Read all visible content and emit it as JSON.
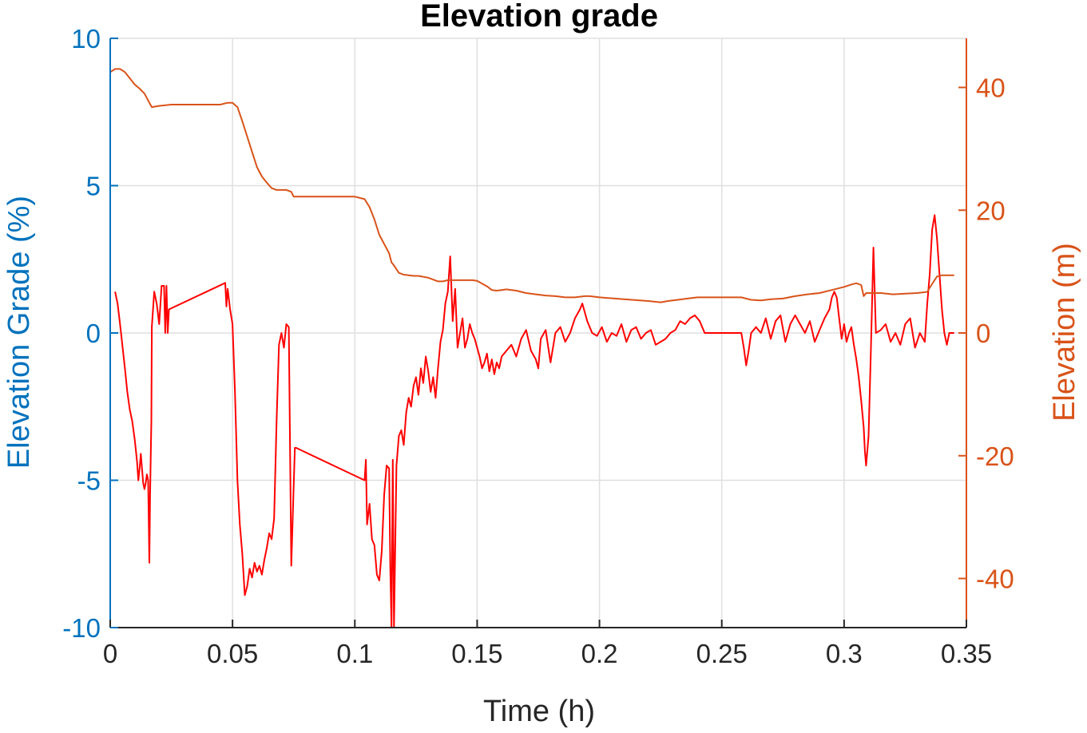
{
  "chart_data": {
    "type": "line",
    "title": "Elevation grade",
    "xlabel": "Time (h)",
    "ylabel_left": "Elevation Grade (%)",
    "ylabel_right": "Elevation (m)",
    "xlim": [
      0,
      0.35
    ],
    "ylim_left": [
      -10,
      10
    ],
    "ylim_right": [
      -48,
      48
    ],
    "grid": true,
    "x_ticks": [
      "0",
      "0.05",
      "0.1",
      "0.15",
      "0.2",
      "0.25",
      "0.3",
      "0.35"
    ],
    "y_left_ticks": [
      "10",
      "5",
      "0",
      "-5",
      "-10"
    ],
    "y_right_ticks": [
      "40",
      "20",
      "0",
      "-20",
      "-40"
    ],
    "colors": {
      "left_axis": "#0072BD",
      "right_axis": "#D95319",
      "grade_line": "#FF0000",
      "elevation_line": "#D95319",
      "grid": "#DFDFDF"
    },
    "series": [
      {
        "axis": "left",
        "x": [
          0.002,
          0.003,
          0.004,
          0.006,
          0.007,
          0.008,
          0.009,
          0.0095,
          0.01,
          0.0105,
          0.011,
          0.0115,
          0.012,
          0.0125,
          0.013,
          0.0135,
          0.014,
          0.0145,
          0.015,
          0.0155,
          0.016,
          0.0163,
          0.0168,
          0.017,
          0.018,
          0.019,
          0.02,
          0.021,
          0.022,
          0.0225,
          0.023,
          0.0235,
          0.024,
          0.047,
          0.0475,
          0.048,
          0.049,
          0.05,
          0.051,
          0.052,
          0.053,
          0.054,
          0.055,
          0.056,
          0.057,
          0.058,
          0.059,
          0.06,
          0.061,
          0.062,
          0.063,
          0.064,
          0.065,
          0.066,
          0.067,
          0.068,
          0.069,
          0.07,
          0.071,
          0.072,
          0.073,
          0.074,
          0.075,
          0.0755,
          0.076,
          0.104,
          0.1045,
          0.105,
          0.106,
          0.107,
          0.108,
          0.109,
          0.11,
          0.111,
          0.112,
          0.113,
          0.114,
          0.1145,
          0.115,
          0.1155,
          0.116,
          0.117,
          0.118,
          0.119,
          0.12,
          0.121,
          0.122,
          0.123,
          0.124,
          0.125,
          0.126,
          0.127,
          0.128,
          0.129,
          0.13,
          0.131,
          0.132,
          0.133,
          0.134,
          0.135,
          0.136,
          0.137,
          0.138,
          0.139,
          0.14,
          0.141,
          0.142,
          0.143,
          0.144,
          0.145,
          0.146,
          0.147,
          0.148,
          0.149,
          0.15,
          0.151,
          0.152,
          0.153,
          0.154,
          0.155,
          0.156,
          0.157,
          0.158,
          0.159,
          0.16,
          0.162,
          0.164,
          0.166,
          0.168,
          0.17,
          0.172,
          0.174,
          0.175,
          0.176,
          0.178,
          0.18,
          0.182,
          0.184,
          0.186,
          0.188,
          0.19,
          0.192,
          0.193,
          0.195,
          0.197,
          0.199,
          0.201,
          0.203,
          0.205,
          0.207,
          0.209,
          0.211,
          0.213,
          0.215,
          0.217,
          0.219,
          0.221,
          0.223,
          0.225,
          0.227,
          0.229,
          0.231,
          0.233,
          0.235,
          0.237,
          0.239,
          0.241,
          0.243,
          0.25,
          0.258,
          0.259,
          0.26,
          0.261,
          0.262,
          0.264,
          0.266,
          0.268,
          0.27,
          0.272,
          0.274,
          0.276,
          0.278,
          0.28,
          0.282,
          0.284,
          0.286,
          0.288,
          0.29,
          0.292,
          0.294,
          0.295,
          0.296,
          0.297,
          0.298,
          0.299,
          0.3,
          0.301,
          0.302,
          0.303,
          0.304,
          0.305,
          0.306,
          0.307,
          0.308,
          0.3085,
          0.309,
          0.31,
          0.311,
          0.312,
          0.313,
          0.315,
          0.317,
          0.319,
          0.321,
          0.323,
          0.325,
          0.327,
          0.329,
          0.331,
          0.333,
          0.334,
          0.335,
          0.336,
          0.337,
          0.338,
          0.339,
          0.34,
          0.341,
          0.342,
          0.343,
          0.345
        ],
        "values": [
          1.4,
          1.0,
          0.3,
          -1.2,
          -2.0,
          -2.6,
          -3.0,
          -3.3,
          -3.6,
          -4.0,
          -4.4,
          -5.0,
          -4.6,
          -4.1,
          -4.6,
          -5.1,
          -5.3,
          -5.1,
          -4.8,
          -5.0,
          -7.8,
          -5.5,
          -3.0,
          0.2,
          1.4,
          1.0,
          0.3,
          1.6,
          1.6,
          0.0,
          1.6,
          0.0,
          0.8,
          1.7,
          0.9,
          1.5,
          0.8,
          0.3,
          -2.0,
          -5.0,
          -6.5,
          -7.5,
          -8.9,
          -8.6,
          -8.0,
          -8.3,
          -7.8,
          -8.1,
          -7.9,
          -8.2,
          -7.7,
          -7.3,
          -6.8,
          -7.0,
          -6.3,
          -3.0,
          -0.4,
          0.0,
          -0.5,
          0.3,
          0.2,
          -7.9,
          -5.2,
          -3.9,
          -3.9,
          -5.0,
          -4.3,
          -6.5,
          -5.8,
          -7.0,
          -7.2,
          -8.2,
          -8.4,
          -7.4,
          -5.5,
          -4.5,
          -4.6,
          -8.0,
          -10.0,
          -4.3,
          -10.0,
          -4.5,
          -3.5,
          -3.3,
          -3.8,
          -2.7,
          -2.2,
          -2.5,
          -1.8,
          -1.5,
          -2.1,
          -1.2,
          -1.7,
          -0.8,
          -1.3,
          -2.0,
          -1.5,
          -2.2,
          -1.2,
          -0.3,
          0.1,
          1.0,
          1.4,
          2.6,
          0.4,
          1.5,
          -0.5,
          0.0,
          0.5,
          -0.5,
          -0.2,
          0.3,
          0.0,
          -0.2,
          -0.5,
          -0.8,
          -1.2,
          -1.0,
          -0.7,
          -1.3,
          -0.9,
          -1.4,
          -1.0,
          -1.2,
          -0.8,
          -0.6,
          -0.4,
          -0.8,
          -0.2,
          0.1,
          -0.6,
          -0.9,
          -1.2,
          -0.2,
          0.1,
          -1.0,
          0.0,
          0.2,
          -0.3,
          0.0,
          0.5,
          0.8,
          1.0,
          0.4,
          0.0,
          -0.1,
          0.2,
          -0.3,
          0.0,
          -0.1,
          0.3,
          -0.3,
          0.1,
          0.2,
          -0.2,
          0.0,
          0.1,
          -0.4,
          -0.3,
          -0.2,
          0.0,
          0.1,
          0.4,
          0.3,
          0.5,
          0.6,
          0.4,
          0.0,
          0.0,
          0.0,
          -0.5,
          -1.1,
          -0.6,
          0.0,
          0.2,
          0.0,
          0.5,
          -0.2,
          0.4,
          0.6,
          -0.3,
          0.3,
          0.6,
          0.3,
          0.0,
          0.4,
          -0.3,
          0.1,
          0.5,
          0.8,
          1.2,
          1.4,
          1.2,
          0.5,
          -0.2,
          0.3,
          -0.3,
          0.0,
          0.2,
          -0.4,
          -0.9,
          -1.5,
          -2.3,
          -3.2,
          -4.0,
          -4.5,
          -3.5,
          -0.5,
          2.9,
          0.0,
          0.1,
          0.3,
          -0.3,
          0.0,
          -0.4,
          0.3,
          0.5,
          -0.5,
          0.0,
          -0.3,
          1.0,
          2.0,
          3.5,
          4.0,
          3.2,
          2.0,
          0.8,
          0.0,
          -0.4,
          0.0,
          0.0
        ]
      },
      {
        "axis": "right",
        "x": [
          0.0,
          0.002,
          0.004,
          0.006,
          0.008,
          0.01,
          0.012,
          0.014,
          0.016,
          0.017,
          0.02,
          0.025,
          0.03,
          0.04,
          0.045,
          0.048,
          0.05,
          0.052,
          0.054,
          0.056,
          0.058,
          0.06,
          0.062,
          0.064,
          0.066,
          0.068,
          0.07,
          0.072,
          0.074,
          0.075,
          0.08,
          0.09,
          0.1,
          0.104,
          0.106,
          0.108,
          0.11,
          0.112,
          0.114,
          0.115,
          0.116,
          0.118,
          0.12,
          0.122,
          0.124,
          0.126,
          0.13,
          0.134,
          0.136,
          0.138,
          0.14,
          0.144,
          0.148,
          0.15,
          0.154,
          0.156,
          0.158,
          0.16,
          0.162,
          0.166,
          0.17,
          0.174,
          0.178,
          0.182,
          0.186,
          0.19,
          0.194,
          0.196,
          0.2,
          0.21,
          0.22,
          0.225,
          0.228,
          0.232,
          0.236,
          0.24,
          0.245,
          0.25,
          0.258,
          0.262,
          0.266,
          0.27,
          0.275,
          0.28,
          0.285,
          0.29,
          0.295,
          0.3,
          0.303,
          0.305,
          0.307,
          0.308,
          0.309,
          0.312,
          0.315,
          0.32,
          0.325,
          0.33,
          0.334,
          0.336,
          0.338,
          0.34,
          0.345
        ],
        "values": [
          42.5,
          43.0,
          43.0,
          42.5,
          41.5,
          40.5,
          39.8,
          39.0,
          37.5,
          36.8,
          37.0,
          37.2,
          37.2,
          37.2,
          37.2,
          37.5,
          37.5,
          36.8,
          34.5,
          32.0,
          29.5,
          27.0,
          25.5,
          24.5,
          23.6,
          23.3,
          23.3,
          23.3,
          23.0,
          22.2,
          22.2,
          22.2,
          22.2,
          21.8,
          20.5,
          18.5,
          16.0,
          14.5,
          13.0,
          11.5,
          11.0,
          9.8,
          9.5,
          9.4,
          9.3,
          9.3,
          9.0,
          8.4,
          8.4,
          8.6,
          8.6,
          8.6,
          8.6,
          8.5,
          7.6,
          7.0,
          6.9,
          7.0,
          7.1,
          6.9,
          6.5,
          6.3,
          6.1,
          6.0,
          5.8,
          5.8,
          6.0,
          6.0,
          5.8,
          5.5,
          5.2,
          5.0,
          5.2,
          5.4,
          5.6,
          5.8,
          5.8,
          5.8,
          5.8,
          5.4,
          5.3,
          5.5,
          5.6,
          6.0,
          6.3,
          6.5,
          7.0,
          7.5,
          7.9,
          8.1,
          7.8,
          6.0,
          6.5,
          6.5,
          6.5,
          6.3,
          6.4,
          6.5,
          6.7,
          8.0,
          9.2,
          9.4,
          9.4
        ]
      }
    ]
  }
}
